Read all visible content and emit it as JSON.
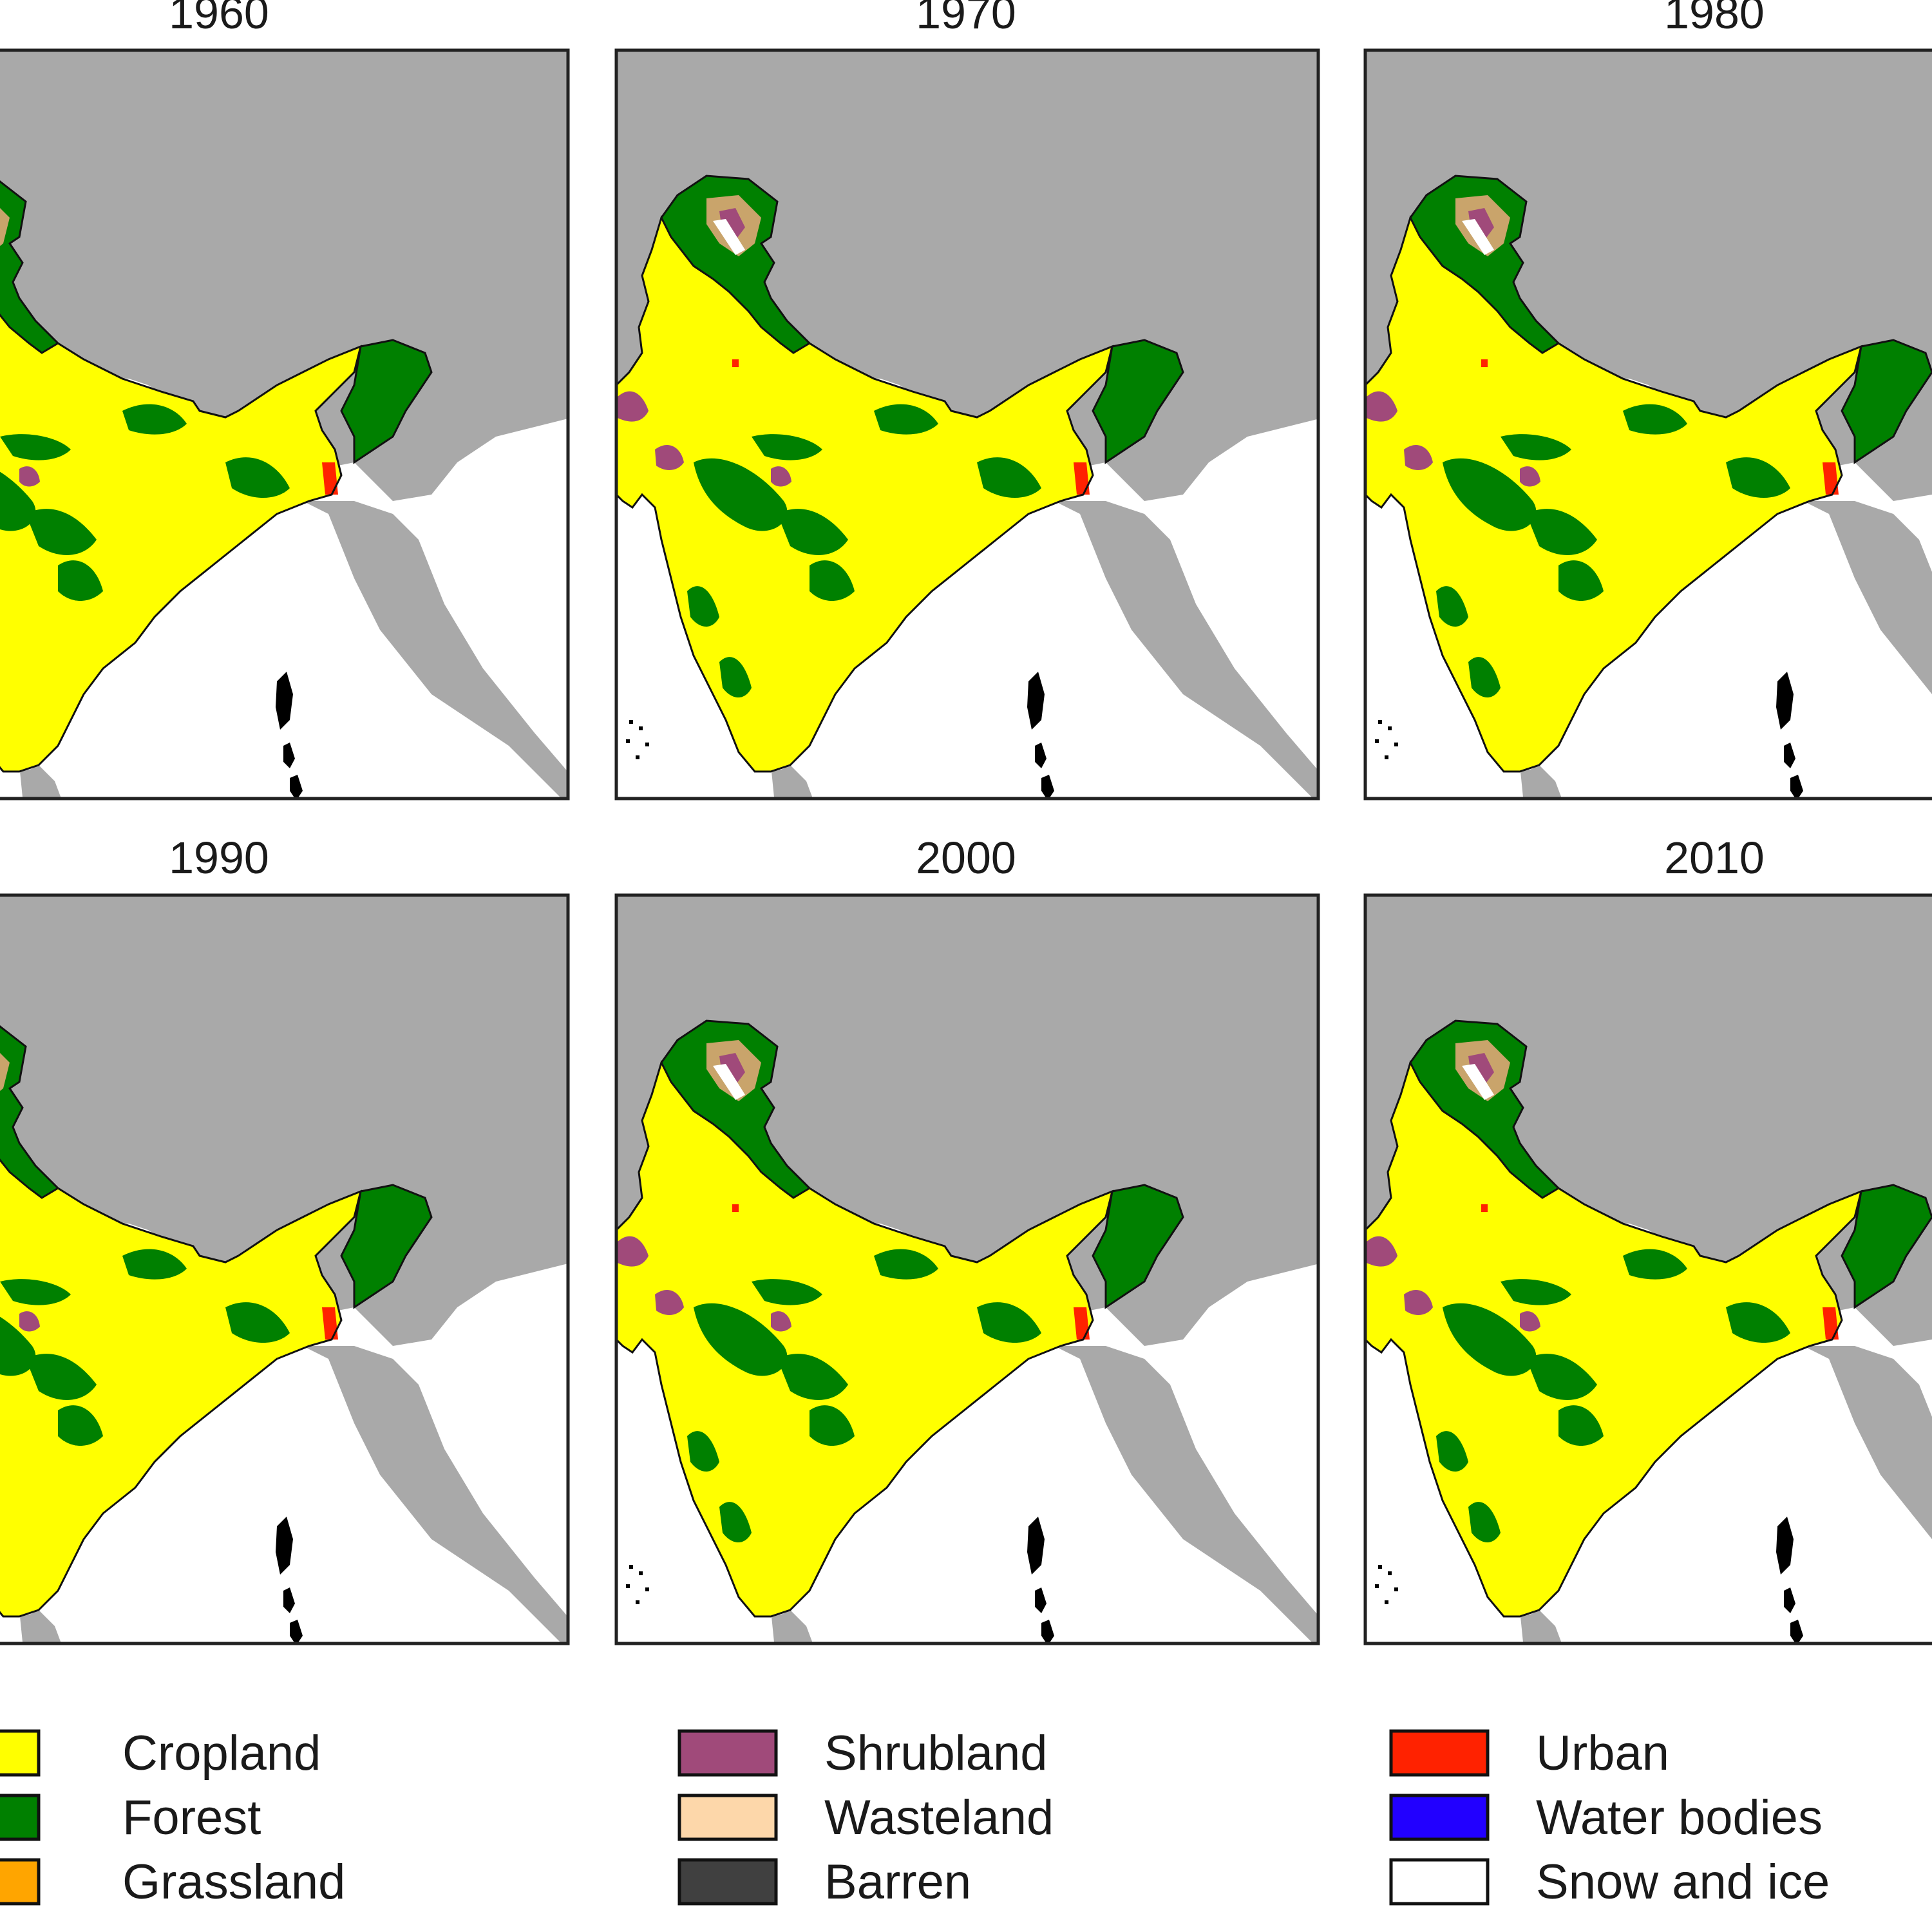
{
  "figure": {
    "panels": [
      {
        "year": "1960"
      },
      {
        "year": "1970"
      },
      {
        "year": "1980"
      },
      {
        "year": "1990"
      },
      {
        "year": "2000"
      },
      {
        "year": "2010"
      }
    ],
    "legend": [
      {
        "label": "Cropland",
        "color": "#ffff00"
      },
      {
        "label": "Forest",
        "color": "#008000"
      },
      {
        "label": "Grassland",
        "color": "#ffa500"
      },
      {
        "label": "Shrubland",
        "color": "#a04a7a"
      },
      {
        "label": "Wasteland",
        "color": "#fdd7aa"
      },
      {
        "label": "Barren",
        "color": "#404040"
      },
      {
        "label": "Urban",
        "color": "#ff2200"
      },
      {
        "label": "Water bodies",
        "color": "#2200ff"
      },
      {
        "label": "Snow and ice",
        "color": "#ffffff"
      }
    ],
    "colors": {
      "neighbor_land": "#a9a9a9",
      "ocean": "#ffffff",
      "frame": "#222222"
    }
  }
}
